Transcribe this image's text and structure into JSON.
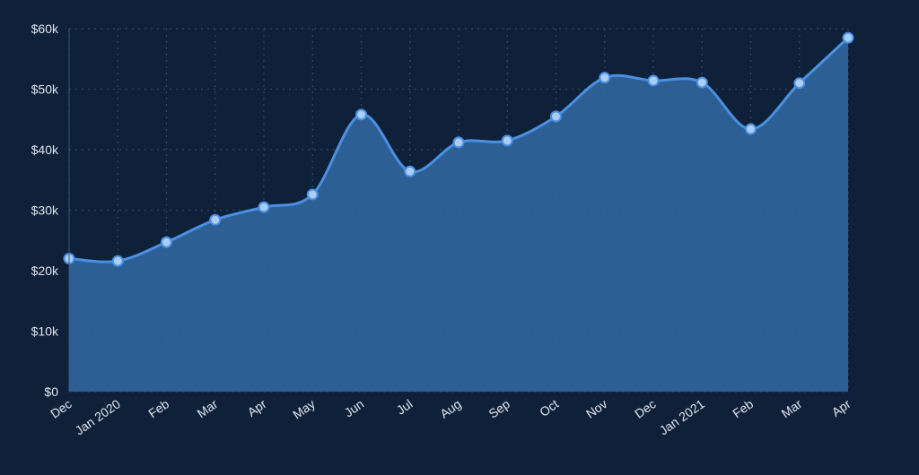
{
  "chart_data": {
    "type": "area",
    "categories": [
      "Dec",
      "Jan 2020",
      "Feb",
      "Mar",
      "Apr",
      "May",
      "Jun",
      "Jul",
      "Aug",
      "Sep",
      "Oct",
      "Nov",
      "Dec",
      "Jan 2021",
      "Feb",
      "Mar",
      "Apr"
    ],
    "values": [
      22000,
      21600,
      24700,
      28400,
      30500,
      32600,
      45800,
      36400,
      41200,
      41500,
      45500,
      51900,
      51400,
      51100,
      43400,
      51000,
      58500
    ],
    "color": "#4a90e2",
    "fill_color": "#2f6399",
    "marker_color": "#a9cdf4",
    "ylim": [
      0,
      60000
    ],
    "yticks": [
      {
        "value": 0,
        "label": "$0"
      },
      {
        "value": 10000,
        "label": "$10k"
      },
      {
        "value": 20000,
        "label": "$20k"
      },
      {
        "value": 30000,
        "label": "$30k"
      },
      {
        "value": 40000,
        "label": "$40k"
      },
      {
        "value": 50000,
        "label": "$50k"
      },
      {
        "value": 60000,
        "label": "$60k"
      }
    ],
    "grid": true
  }
}
